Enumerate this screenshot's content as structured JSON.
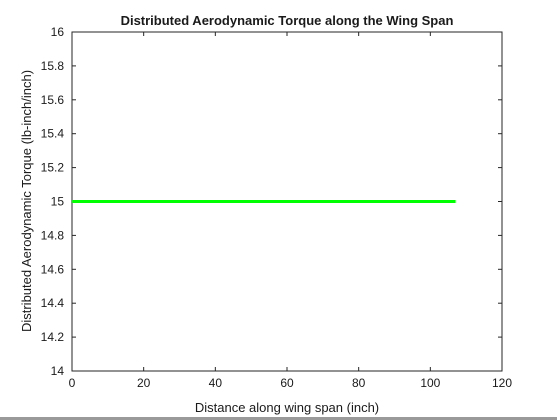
{
  "chart_data": {
    "type": "line",
    "title": "Distributed Aerodynamic Torque along the Wing Span",
    "xlabel": "Distance along wing span (inch)",
    "ylabel": "Distributed Aerodynamic Torque (lb-inch/inch)",
    "xlim": [
      0,
      120
    ],
    "ylim": [
      14,
      16
    ],
    "x_ticks": [
      "0",
      "20",
      "40",
      "60",
      "80",
      "100",
      "120"
    ],
    "y_ticks": [
      "14",
      "14.2",
      "14.4",
      "14.6",
      "14.8",
      "15",
      "15.2",
      "15.4",
      "15.6",
      "15.8",
      "16"
    ],
    "grid": false,
    "series": [
      {
        "color": "#00ff00",
        "x": [
          0,
          107
        ],
        "y": [
          15,
          15
        ]
      }
    ]
  }
}
